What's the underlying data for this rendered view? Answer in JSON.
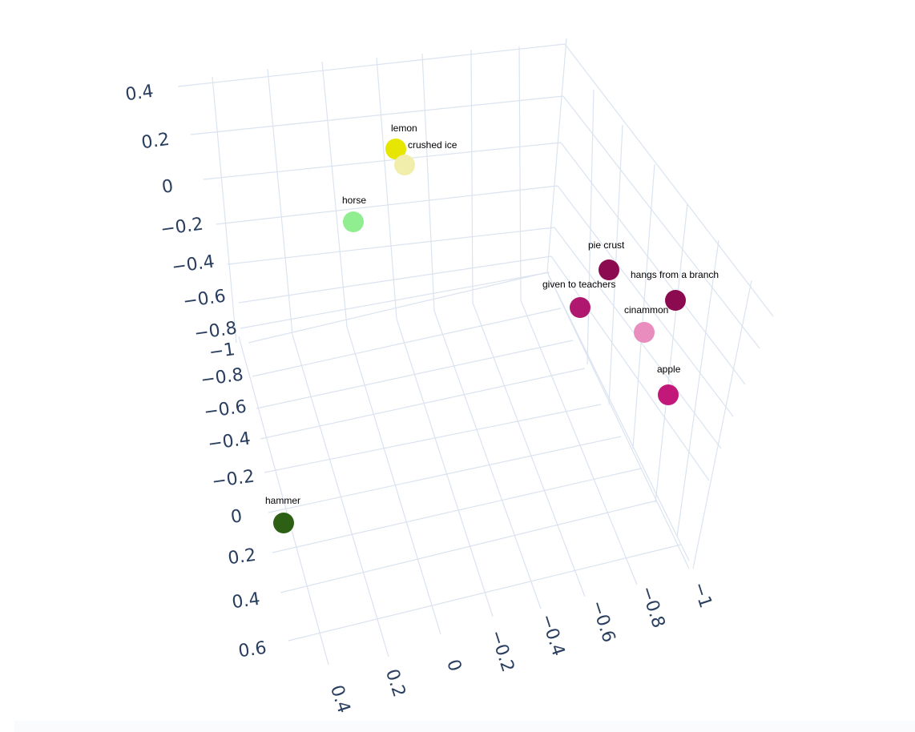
{
  "chart_data": {
    "type": "scatter3d",
    "title": "",
    "axes": {
      "x": {
        "ticks": [
          "0.4",
          "0.2",
          "0",
          "−0.2",
          "−0.4",
          "−0.6",
          "−0.8",
          "−1"
        ]
      },
      "y": {
        "ticks": [
          "−1",
          "−0.8",
          "−0.6",
          "−0.4",
          "−0.2",
          "0",
          "0.2",
          "0.4",
          "0.6"
        ]
      },
      "z": {
        "ticks": [
          "0.4",
          "0.2",
          "0",
          "−0.2",
          "−0.4",
          "−0.6",
          "−0.8"
        ]
      }
    },
    "points": [
      {
        "label": "lemon",
        "color": "#e6e600"
      },
      {
        "label": "crushed ice",
        "color": "#f0eeaa"
      },
      {
        "label": "horse",
        "color": "#90ee90"
      },
      {
        "label": "pie crust",
        "color": "#8b0a50"
      },
      {
        "label": "given to teachers",
        "color": "#b0176e"
      },
      {
        "label": "hangs from a branch",
        "color": "#8b0a50"
      },
      {
        "label": "cinammon",
        "color": "#e88dbd"
      },
      {
        "label": "apple",
        "color": "#c2187a"
      },
      {
        "label": "hammer",
        "color": "#2d6015"
      }
    ],
    "grid": true,
    "legend": "none"
  }
}
